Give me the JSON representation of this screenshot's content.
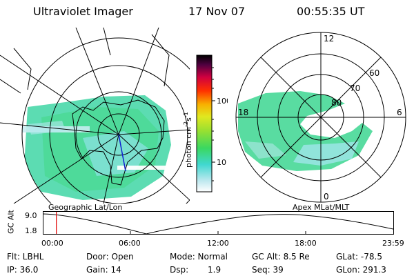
{
  "header": {
    "title": "Ultraviolet Imager",
    "date": "17 Nov 07",
    "time": "00:55:35 UT"
  },
  "left_map": {
    "caption": "Geographic Lat/Lon"
  },
  "right_map": {
    "caption": "Apex MLat/MLT",
    "mlt_labels": [
      "12",
      "18",
      "6",
      "0"
    ],
    "lat_labels": [
      "60",
      "70",
      "80"
    ]
  },
  "colorbar": {
    "unit": "photon cm",
    "unit_sup1": "-2",
    "unit_mid": "s",
    "unit_sup2": "-1",
    "ticks": [
      "100",
      "10"
    ],
    "scale": "log",
    "colors": [
      "#ffffff",
      "#bfe8ef",
      "#40d8d0",
      "#3ad860",
      "#9be030",
      "#e0e820",
      "#f8b000",
      "#ff3000",
      "#d00040",
      "#500040",
      "#000000"
    ]
  },
  "altitude_plot": {
    "ylabel": "GC Alt",
    "ymax_label": "9.0",
    "ymin_label": "1.8",
    "xticks": [
      "00:00",
      "06:00",
      "12:00",
      "18:00",
      "23:59"
    ],
    "current_time_hours": 0.93,
    "marker_color": "#e00000"
  },
  "info": {
    "flt": "Flt: LBHL",
    "ip": "IP: 36.0",
    "door": "Door: Open",
    "gain": "Gain: 14",
    "mode": "Mode: Normal",
    "dsp_label": "Dsp:",
    "dsp_value": "1.9",
    "gcalt": "GC Alt: 8.5 Re",
    "seq": "Seq: 39",
    "glat": "GLat: -78.5",
    "glon": "GLon: 291.3"
  }
}
